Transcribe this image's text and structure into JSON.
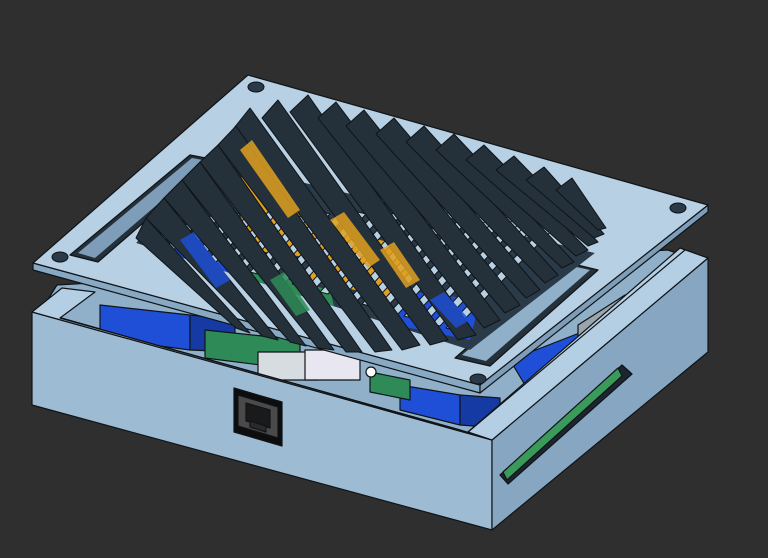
{
  "scene": {
    "description_hidden": "",
    "background": "#2f2f2f"
  },
  "colors": {
    "enclosure_light": "#a9c6de",
    "enclosure_mid": "#93b3cd",
    "enclosure_dark": "#7d9db8",
    "edge": "#101418",
    "relay_blue": "#1f4fd6",
    "relay_blue_dark": "#163aa3",
    "pcb_green": "#2e8b57",
    "ribbon_orange": "#e0a020",
    "ethernet_port": "#1a1a1a"
  },
  "parts": {
    "lid": "vented-lid",
    "base": "enclosure-base",
    "port": "rj45-port",
    "side_slot": "side-slot"
  }
}
